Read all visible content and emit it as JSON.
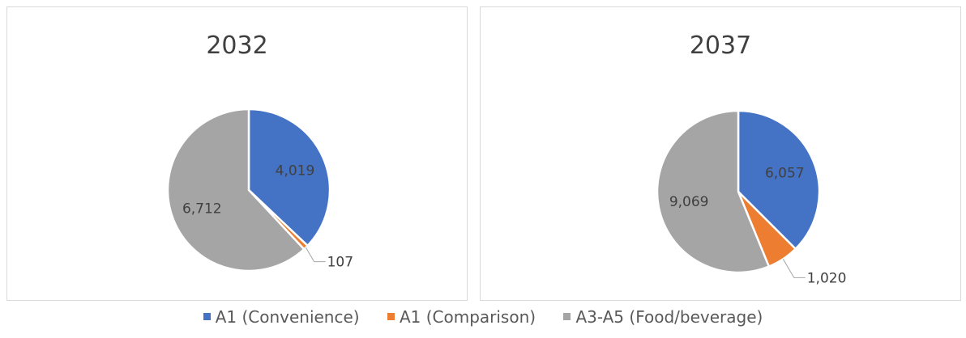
{
  "colors": {
    "A1 (Convenience)": "#4472c4",
    "A1 (Comparison)": "#ed7d31",
    "A3-A5 (Food/beverage)": "#a5a5a5"
  },
  "chart_data": [
    {
      "type": "pie",
      "title": "2032",
      "categories": [
        "A1 (Convenience)",
        "A1 (Comparison)",
        "A3-A5 (Food/beverage)"
      ],
      "values": [
        4019,
        107,
        6712
      ],
      "labels": [
        "4,019",
        "107",
        "6,712"
      ]
    },
    {
      "type": "pie",
      "title": "2037",
      "categories": [
        "A1 (Convenience)",
        "A1 (Comparison)",
        "A3-A5 (Food/beverage)"
      ],
      "values": [
        6057,
        1020,
        9069
      ],
      "labels": [
        "6,057",
        "1,020",
        "9,069"
      ]
    }
  ],
  "legend": {
    "placement": "bottom",
    "items": [
      "A1 (Convenience)",
      "A1 (Comparison)",
      "A3-A5 (Food/beverage)"
    ]
  }
}
